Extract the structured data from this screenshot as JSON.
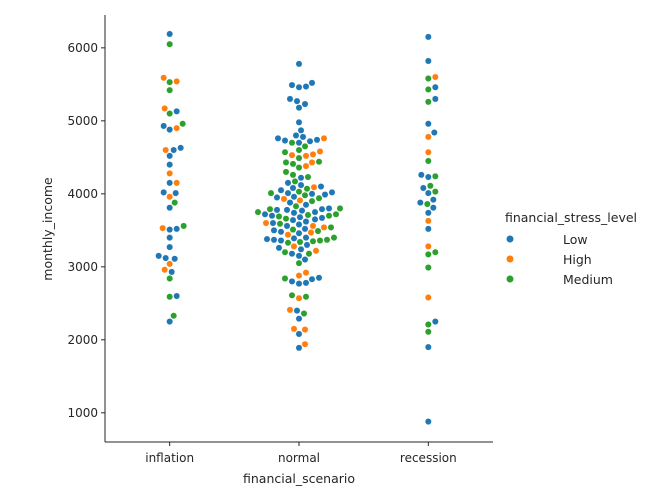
{
  "chart_data": {
    "type": "scatter",
    "subtype": "swarm",
    "xlabel": "financial_scenario",
    "ylabel": "monthly_income",
    "categories": [
      "inflation",
      "normal",
      "recession"
    ],
    "ylim": [
      600,
      6450
    ],
    "yticks": [
      1000,
      2000,
      3000,
      4000,
      5000,
      6000
    ],
    "grid": false,
    "legend": {
      "title": "financial_stress_level",
      "placement": "right",
      "entries": [
        {
          "name": "Low",
          "color": "#1f77b4"
        },
        {
          "name": "High",
          "color": "#ff7f0e"
        },
        {
          "name": "Medium",
          "color": "#2ca02c"
        }
      ]
    },
    "series": [
      {
        "name": "Low",
        "color": "#1f77b4",
        "points": [
          [
            "inflation",
            6190
          ],
          [
            "inflation",
            5130
          ],
          [
            "inflation",
            4930
          ],
          [
            "inflation",
            4880
          ],
          [
            "inflation",
            4630
          ],
          [
            "inflation",
            4600
          ],
          [
            "inflation",
            4520
          ],
          [
            "inflation",
            4400
          ],
          [
            "inflation",
            4150
          ],
          [
            "inflation",
            4020
          ],
          [
            "inflation",
            4010
          ],
          [
            "inflation",
            3810
          ],
          [
            "inflation",
            3520
          ],
          [
            "inflation",
            3510
          ],
          [
            "inflation",
            3400
          ],
          [
            "inflation",
            3270
          ],
          [
            "inflation",
            3150
          ],
          [
            "inflation",
            3120
          ],
          [
            "inflation",
            3110
          ],
          [
            "inflation",
            2930
          ],
          [
            "inflation",
            2600
          ],
          [
            "inflation",
            2250
          ],
          [
            "normal",
            5780
          ],
          [
            "normal",
            5520
          ],
          [
            "normal",
            5490
          ],
          [
            "normal",
            5470
          ],
          [
            "normal",
            5460
          ],
          [
            "normal",
            5300
          ],
          [
            "normal",
            5270
          ],
          [
            "normal",
            5230
          ],
          [
            "normal",
            5180
          ],
          [
            "normal",
            4980
          ],
          [
            "normal",
            4870
          ],
          [
            "normal",
            4800
          ],
          [
            "normal",
            4780
          ],
          [
            "normal",
            4760
          ],
          [
            "normal",
            4740
          ],
          [
            "normal",
            4730
          ],
          [
            "normal",
            4720
          ],
          [
            "normal",
            4700
          ],
          [
            "normal",
            4220
          ],
          [
            "normal",
            4150
          ],
          [
            "normal",
            4120
          ],
          [
            "normal",
            4100
          ],
          [
            "normal",
            4080
          ],
          [
            "normal",
            4050
          ],
          [
            "normal",
            4020
          ],
          [
            "normal",
            4010
          ],
          [
            "normal",
            4000
          ],
          [
            "normal",
            3990
          ],
          [
            "normal",
            3960
          ],
          [
            "normal",
            3950
          ],
          [
            "normal",
            3880
          ],
          [
            "normal",
            3850
          ],
          [
            "normal",
            3800
          ],
          [
            "normal",
            3790
          ],
          [
            "normal",
            3780
          ],
          [
            "normal",
            3780
          ],
          [
            "normal",
            3770
          ],
          [
            "normal",
            3750
          ],
          [
            "normal",
            3740
          ],
          [
            "normal",
            3720
          ],
          [
            "normal",
            3700
          ],
          [
            "normal",
            3680
          ],
          [
            "normal",
            3670
          ],
          [
            "normal",
            3650
          ],
          [
            "normal",
            3640
          ],
          [
            "normal",
            3620
          ],
          [
            "normal",
            3600
          ],
          [
            "normal",
            3580
          ],
          [
            "normal",
            3560
          ],
          [
            "normal",
            3520
          ],
          [
            "normal",
            3500
          ],
          [
            "normal",
            3480
          ],
          [
            "normal",
            3460
          ],
          [
            "normal",
            3400
          ],
          [
            "normal",
            3390
          ],
          [
            "normal",
            3380
          ],
          [
            "normal",
            3370
          ],
          [
            "normal",
            3360
          ],
          [
            "normal",
            3300
          ],
          [
            "normal",
            3260
          ],
          [
            "normal",
            3240
          ],
          [
            "normal",
            3180
          ],
          [
            "normal",
            3150
          ],
          [
            "normal",
            3100
          ],
          [
            "normal",
            2850
          ],
          [
            "normal",
            2830
          ],
          [
            "normal",
            2800
          ],
          [
            "normal",
            2780
          ],
          [
            "normal",
            2770
          ],
          [
            "normal",
            2400
          ],
          [
            "normal",
            2290
          ],
          [
            "normal",
            2080
          ],
          [
            "normal",
            1890
          ],
          [
            "recession",
            6150
          ],
          [
            "recession",
            5820
          ],
          [
            "recession",
            5460
          ],
          [
            "recession",
            5300
          ],
          [
            "recession",
            4960
          ],
          [
            "recession",
            4840
          ],
          [
            "recession",
            4260
          ],
          [
            "recession",
            4230
          ],
          [
            "recession",
            4080
          ],
          [
            "recession",
            4010
          ],
          [
            "recession",
            3920
          ],
          [
            "recession",
            3880
          ],
          [
            "recession",
            3810
          ],
          [
            "recession",
            3740
          ],
          [
            "recession",
            3520
          ],
          [
            "recession",
            2250
          ],
          [
            "recession",
            1900
          ],
          [
            "recession",
            880
          ]
        ]
      },
      {
        "name": "High",
        "color": "#ff7f0e",
        "points": [
          [
            "inflation",
            5590
          ],
          [
            "inflation",
            5540
          ],
          [
            "inflation",
            5170
          ],
          [
            "inflation",
            4900
          ],
          [
            "inflation",
            4600
          ],
          [
            "inflation",
            4280
          ],
          [
            "inflation",
            4150
          ],
          [
            "inflation",
            3960
          ],
          [
            "inflation",
            3530
          ],
          [
            "inflation",
            3040
          ],
          [
            "inflation",
            2960
          ],
          [
            "normal",
            4760
          ],
          [
            "normal",
            4580
          ],
          [
            "normal",
            4540
          ],
          [
            "normal",
            4530
          ],
          [
            "normal",
            4520
          ],
          [
            "normal",
            4430
          ],
          [
            "normal",
            4380
          ],
          [
            "normal",
            4090
          ],
          [
            "normal",
            3930
          ],
          [
            "normal",
            3910
          ],
          [
            "normal",
            3600
          ],
          [
            "normal",
            3560
          ],
          [
            "normal",
            3540
          ],
          [
            "normal",
            3470
          ],
          [
            "normal",
            3440
          ],
          [
            "normal",
            3280
          ],
          [
            "normal",
            3220
          ],
          [
            "normal",
            2920
          ],
          [
            "normal",
            2880
          ],
          [
            "normal",
            2570
          ],
          [
            "normal",
            2410
          ],
          [
            "normal",
            2150
          ],
          [
            "normal",
            2140
          ],
          [
            "normal",
            1940
          ],
          [
            "recession",
            5600
          ],
          [
            "recession",
            4780
          ],
          [
            "recession",
            4570
          ],
          [
            "recession",
            3630
          ],
          [
            "recession",
            3280
          ],
          [
            "recession",
            2580
          ]
        ]
      },
      {
        "name": "Medium",
        "color": "#2ca02c",
        "points": [
          [
            "inflation",
            6050
          ],
          [
            "inflation",
            5530
          ],
          [
            "inflation",
            5420
          ],
          [
            "inflation",
            5100
          ],
          [
            "inflation",
            4960
          ],
          [
            "inflation",
            3880
          ],
          [
            "inflation",
            3560
          ],
          [
            "inflation",
            2840
          ],
          [
            "inflation",
            2590
          ],
          [
            "inflation",
            2330
          ],
          [
            "normal",
            4700
          ],
          [
            "normal",
            4650
          ],
          [
            "normal",
            4600
          ],
          [
            "normal",
            4570
          ],
          [
            "normal",
            4490
          ],
          [
            "normal",
            4440
          ],
          [
            "normal",
            4430
          ],
          [
            "normal",
            4410
          ],
          [
            "normal",
            4360
          ],
          [
            "normal",
            4300
          ],
          [
            "normal",
            4260
          ],
          [
            "normal",
            4230
          ],
          [
            "normal",
            4170
          ],
          [
            "normal",
            4070
          ],
          [
            "normal",
            4030
          ],
          [
            "normal",
            4010
          ],
          [
            "normal",
            3980
          ],
          [
            "normal",
            3940
          ],
          [
            "normal",
            3900
          ],
          [
            "normal",
            3830
          ],
          [
            "normal",
            3800
          ],
          [
            "normal",
            3790
          ],
          [
            "normal",
            3750
          ],
          [
            "normal",
            3720
          ],
          [
            "normal",
            3710
          ],
          [
            "normal",
            3700
          ],
          [
            "normal",
            3690
          ],
          [
            "normal",
            3660
          ],
          [
            "normal",
            3590
          ],
          [
            "normal",
            3540
          ],
          [
            "normal",
            3510
          ],
          [
            "normal",
            3490
          ],
          [
            "normal",
            3400
          ],
          [
            "normal",
            3370
          ],
          [
            "normal",
            3360
          ],
          [
            "normal",
            3350
          ],
          [
            "normal",
            3340
          ],
          [
            "normal",
            3330
          ],
          [
            "normal",
            3200
          ],
          [
            "normal",
            3180
          ],
          [
            "normal",
            3050
          ],
          [
            "normal",
            2840
          ],
          [
            "normal",
            2610
          ],
          [
            "normal",
            2590
          ],
          [
            "normal",
            2360
          ],
          [
            "recession",
            5580
          ],
          [
            "recession",
            5430
          ],
          [
            "recession",
            5260
          ],
          [
            "recession",
            4450
          ],
          [
            "recession",
            4240
          ],
          [
            "recession",
            4110
          ],
          [
            "recession",
            4030
          ],
          [
            "recession",
            3860
          ],
          [
            "recession",
            3200
          ],
          [
            "recession",
            3170
          ],
          [
            "recession",
            2990
          ],
          [
            "recession",
            2210
          ],
          [
            "recession",
            2110
          ]
        ]
      }
    ]
  }
}
